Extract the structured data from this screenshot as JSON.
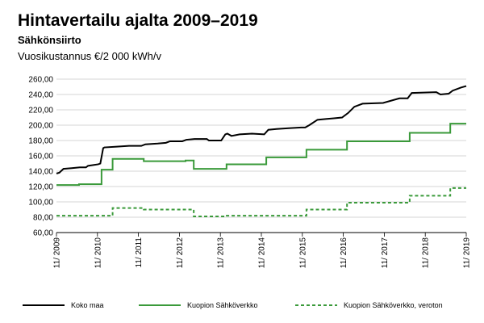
{
  "chart_data": {
    "type": "line",
    "title": "Hintavertailu ajalta 2009–2019",
    "subtitle": "Sähkönsiirto",
    "y_label": "Vuosikustannus €/2 000 kWh/v",
    "xlim": [
      2009.83,
      2019.83
    ],
    "xticks": [
      {
        "value": 2009.83,
        "label": "11/ 2009"
      },
      {
        "value": 2010.83,
        "label": "11/ 2010"
      },
      {
        "value": 2011.83,
        "label": "11/ 2011"
      },
      {
        "value": 2012.83,
        "label": "11/ 2012"
      },
      {
        "value": 2013.83,
        "label": "11/ 2013"
      },
      {
        "value": 2014.83,
        "label": "11/ 2014"
      },
      {
        "value": 2015.83,
        "label": "11/ 2015"
      },
      {
        "value": 2016.83,
        "label": "11/ 2016"
      },
      {
        "value": 2017.83,
        "label": "11/ 2017"
      },
      {
        "value": 2018.83,
        "label": "11/ 2018"
      },
      {
        "value": 2019.83,
        "label": "11/ 2019"
      }
    ],
    "ylim": [
      60,
      260
    ],
    "yticks": [
      {
        "value": 60,
        "label": "60,00"
      },
      {
        "value": 80,
        "label": "80,00"
      },
      {
        "value": 100,
        "label": "100,00"
      },
      {
        "value": 120,
        "label": "120,00"
      },
      {
        "value": 140,
        "label": "140,00"
      },
      {
        "value": 160,
        "label": "160,00"
      },
      {
        "value": 180,
        "label": "180,00"
      },
      {
        "value": 200,
        "label": "200,00"
      },
      {
        "value": 220,
        "label": "220,00"
      },
      {
        "value": 240,
        "label": "240,00"
      },
      {
        "value": 260,
        "label": "260,00"
      }
    ],
    "grid": true,
    "legend": "bottom",
    "series": [
      {
        "name": "Koko maa",
        "color": "#000000",
        "dashed": false,
        "x": [
          2009.83,
          2009.9,
          2010.0,
          2010.2,
          2010.4,
          2010.55,
          2010.6,
          2010.85,
          2010.9,
          2010.97,
          2011.0,
          2011.3,
          2011.6,
          2011.9,
          2012.0,
          2012.3,
          2012.5,
          2012.6,
          2012.9,
          2013.0,
          2013.2,
          2013.5,
          2013.55,
          2013.85,
          2013.95,
          2014.0,
          2014.1,
          2014.3,
          2014.6,
          2014.9,
          2015.0,
          2015.2,
          2015.5,
          2015.8,
          2015.9,
          2016.0,
          2016.2,
          2016.4,
          2016.6,
          2016.8,
          2016.95,
          2017.1,
          2017.3,
          2017.8,
          2018.0,
          2018.2,
          2018.4,
          2018.5,
          2019.1,
          2019.2,
          2019.4,
          2019.5,
          2019.7,
          2019.83
        ],
        "values": [
          137,
          138,
          143,
          144,
          145,
          145,
          147,
          149,
          150,
          170,
          171,
          172,
          173,
          173,
          175,
          176,
          177,
          179,
          179,
          181,
          182,
          182,
          180,
          180,
          188,
          189,
          186,
          188,
          189,
          188,
          194,
          195,
          196,
          197,
          197,
          200,
          207,
          208,
          209,
          210,
          216,
          224,
          228,
          229,
          232,
          235,
          235,
          242,
          243,
          240,
          241,
          245,
          249,
          251
        ]
      },
      {
        "name": "Kuopion Sähköverkko",
        "color": "#3a9a3a",
        "dashed": false,
        "x": [
          2009.83,
          2010.38,
          2010.38,
          2010.93,
          2010.93,
          2011.2,
          2011.2,
          2011.96,
          2011.96,
          2012.98,
          2012.98,
          2013.18,
          2013.18,
          2013.98,
          2013.98,
          2014.95,
          2014.95,
          2015.93,
          2015.93,
          2016.92,
          2016.92,
          2018.45,
          2018.45,
          2019.44,
          2019.44,
          2019.83
        ],
        "values": [
          122,
          122,
          123,
          123,
          142,
          142,
          156,
          156,
          153,
          153,
          154,
          154,
          143,
          143,
          149,
          149,
          158,
          158,
          168,
          168,
          179,
          179,
          190,
          190,
          202,
          202
        ]
      },
      {
        "name": "Kuopion Sähköverkko, veroton",
        "color": "#3a9a3a",
        "dashed": true,
        "x": [
          2009.83,
          2011.2,
          2011.2,
          2011.96,
          2011.96,
          2013.18,
          2013.18,
          2013.93,
          2013.93,
          2015.93,
          2015.93,
          2016.92,
          2016.92,
          2018.45,
          2018.45,
          2019.44,
          2019.44,
          2019.83
        ],
        "values": [
          82,
          82,
          92,
          92,
          90,
          90,
          81,
          81,
          82,
          82,
          90,
          90,
          99,
          99,
          108,
          108,
          118,
          118
        ]
      }
    ]
  }
}
